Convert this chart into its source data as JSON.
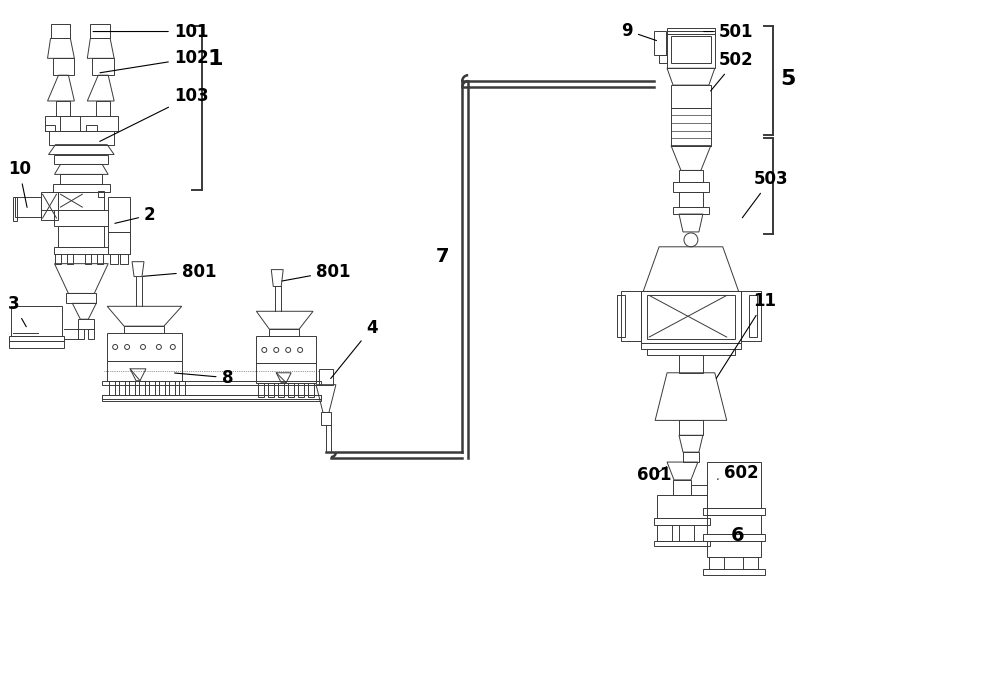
{
  "bg_color": "#ffffff",
  "lc": "#3a3a3a",
  "lw": 1.2,
  "tlw": 0.7,
  "fs": 12,
  "fig_w": 10.0,
  "fig_h": 6.91
}
